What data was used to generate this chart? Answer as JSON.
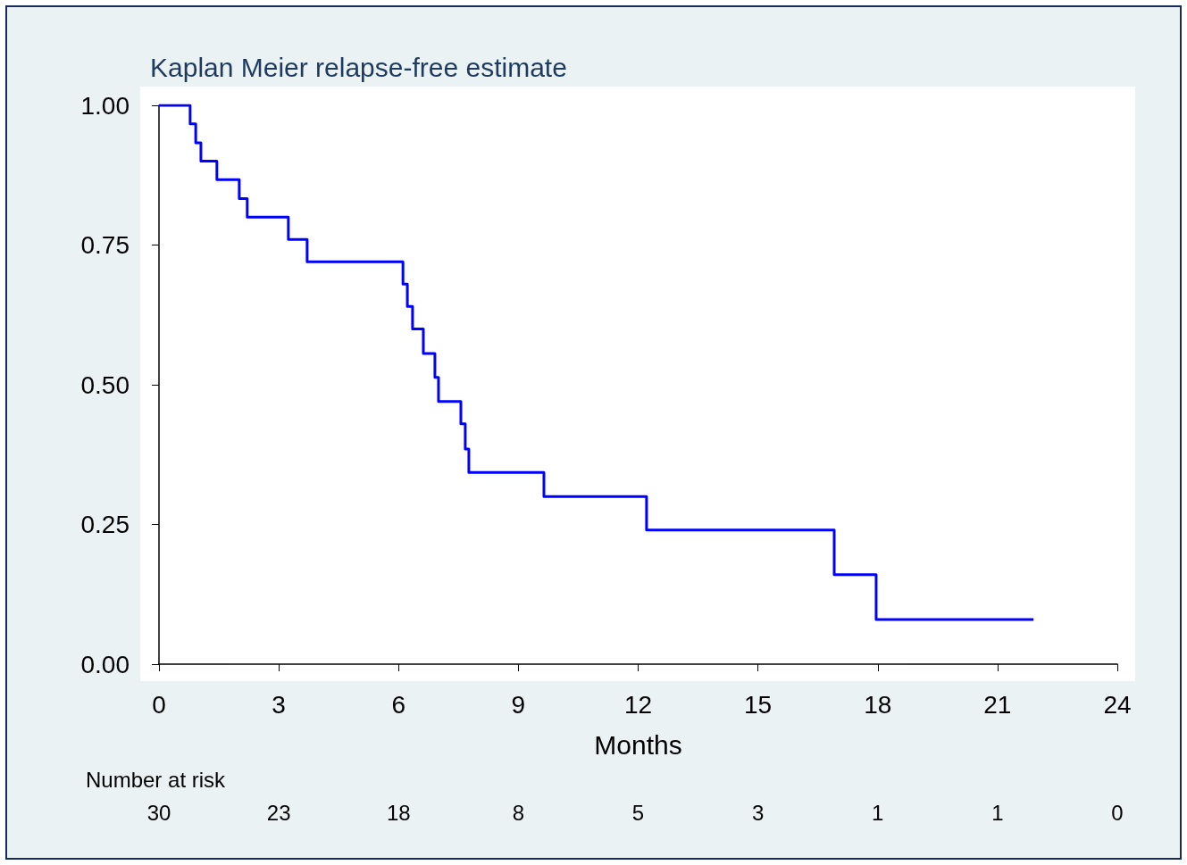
{
  "chart_data": {
    "type": "step",
    "title": "Kaplan Meier relapse-free estimate",
    "xlabel": "Months",
    "x": [
      0,
      0.78,
      0.92,
      1.05,
      1.45,
      2.01,
      2.21,
      3.24,
      3.71,
      6.11,
      6.22,
      6.35,
      6.62,
      6.91,
      7.0,
      7.56,
      7.67,
      7.76,
      9.64,
      12.21,
      16.91,
      17.96,
      21.9
    ],
    "series": [
      {
        "color": "#0000ff",
        "values": [
          1,
          0.967,
          0.933,
          0.9,
          0.867,
          0.833,
          0.8,
          0.76,
          0.72,
          0.68,
          0.64,
          0.6,
          0.556,
          0.513,
          0.47,
          0.43,
          0.385,
          0.343,
          0.3,
          0.24,
          0.16,
          0.08,
          0.08
        ]
      }
    ],
    "xlim": [
      0,
      24
    ],
    "xticks": [
      0,
      3,
      6,
      9,
      12,
      15,
      18,
      21,
      24
    ],
    "ylim": [
      0,
      1
    ],
    "yticks": [
      {
        "value": 0,
        "label": "0.00"
      },
      {
        "value": 0.25,
        "label": "0.25"
      },
      {
        "value": 0.5,
        "label": "0.50"
      },
      {
        "value": 0.75,
        "label": "0.75"
      },
      {
        "value": 1,
        "label": "1.00"
      }
    ],
    "annotations": [
      "Number at risk",
      "30",
      "23",
      "18",
      "8",
      "5",
      "3",
      "1",
      "1",
      "0"
    ],
    "grid": false,
    "marker": "none",
    "line_style": "solid"
  }
}
